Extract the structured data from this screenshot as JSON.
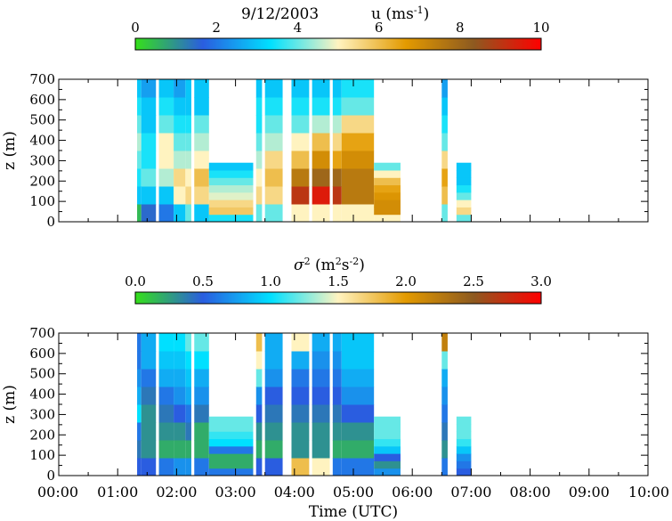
{
  "chart_data": [
    {
      "type": "heatmap",
      "title": "9/12/2003",
      "variable": "u",
      "unit_base": "ms",
      "unit_exp": "-1",
      "colorbar": {
        "min": 0,
        "max": 10,
        "ticks": [
          "0",
          "2",
          "4",
          "6",
          "8",
          "10"
        ],
        "tick_values": [
          0,
          2,
          4,
          6,
          8,
          10
        ],
        "colors": [
          "#35e01a",
          "#2a5de0",
          "#00e0ff",
          "#fff3c0",
          "#e39a00",
          "#8d5a20",
          "#ff0000"
        ]
      },
      "ylabel": "z (m)",
      "ylim": [
        0,
        700
      ],
      "yticks": [
        0,
        100,
        200,
        300,
        400,
        500,
        600,
        700
      ],
      "xlim": [
        0,
        10
      ],
      "segments": [
        {
          "x0": 1.33,
          "x1": 1.4,
          "ztop": 700,
          "profile": [
            0.5,
            3,
            3.5,
            4,
            4.5,
            4,
            3.5,
            3
          ]
        },
        {
          "x0": 1.4,
          "x1": 1.65,
          "ztop": 700,
          "profile": [
            1.5,
            3,
            4,
            3.5,
            3.5,
            3,
            3,
            2.5
          ]
        },
        {
          "x0": 1.7,
          "x1": 1.95,
          "ztop": 700,
          "profile": [
            2,
            3,
            4.5,
            5,
            5,
            4,
            3.5,
            3
          ]
        },
        {
          "x0": 1.95,
          "x1": 2.15,
          "ztop": 700,
          "profile": [
            3,
            5,
            5.5,
            4.5,
            4,
            3.5,
            3,
            2.5
          ]
        },
        {
          "x0": 2.15,
          "x1": 2.25,
          "ztop": 700,
          "profile": [
            4,
            5.5,
            5,
            4.5,
            4,
            3.5,
            3,
            3
          ]
        },
        {
          "x0": 2.3,
          "x1": 2.55,
          "ztop": 700,
          "profile": [
            3,
            5.5,
            6,
            5,
            4.5,
            4,
            3,
            3
          ]
        },
        {
          "x0": 2.55,
          "x1": 3.3,
          "ztop": 290,
          "profile": [
            3.5,
            5.8,
            5.5,
            4.8,
            4.5,
            4,
            3.5,
            3
          ]
        },
        {
          "x0": 3.35,
          "x1": 3.45,
          "ztop": 700,
          "profile": [
            4,
            5.5,
            5,
            4.5,
            4,
            3.5,
            3.5,
            3
          ]
        },
        {
          "x0": 3.5,
          "x1": 3.8,
          "ztop": 700,
          "profile": [
            4,
            5.5,
            6,
            5.5,
            4.5,
            4,
            3.5,
            3
          ]
        },
        {
          "x0": 3.95,
          "x1": 4.25,
          "ztop": 700,
          "profile": [
            5,
            9,
            7.5,
            6,
            5,
            4,
            3.5,
            3
          ]
        },
        {
          "x0": 4.3,
          "x1": 4.6,
          "ztop": 700,
          "profile": [
            5,
            9.5,
            8,
            7,
            6,
            4.5,
            3.5,
            3
          ]
        },
        {
          "x0": 4.65,
          "x1": 4.8,
          "ztop": 700,
          "profile": [
            5,
            9,
            8,
            6.5,
            5.5,
            4.5,
            3.5,
            3
          ]
        },
        {
          "x0": 4.8,
          "x1": 5.35,
          "ztop": 700,
          "profile": [
            5,
            7.5,
            7.5,
            7,
            6.5,
            5.5,
            4,
            3.5
          ]
        },
        {
          "x0": 5.35,
          "x1": 5.8,
          "ztop": 290,
          "profile": [
            5,
            7,
            7,
            6.8,
            6.5,
            6,
            5,
            4
          ]
        },
        {
          "x0": 6.5,
          "x1": 6.6,
          "ztop": 700,
          "profile": [
            4,
            6,
            6.5,
            5.5,
            4,
            3.5,
            3,
            2.5
          ]
        },
        {
          "x0": 6.75,
          "x1": 7.0,
          "ztop": 290,
          "profile": [
            4,
            5.5,
            5,
            4,
            3.5,
            3,
            3,
            3
          ]
        }
      ]
    },
    {
      "type": "heatmap",
      "variable": "σ",
      "variable_exp": "2",
      "unit_base": "m",
      "unit_exp1": "2",
      "unit_mid": "s",
      "unit_exp2": "-2",
      "colorbar": {
        "min": 0,
        "max": 3,
        "ticks": [
          "0.0",
          "0.5",
          "1.0",
          "1.5",
          "2.0",
          "2.5",
          "3.0"
        ],
        "tick_values": [
          0,
          0.5,
          1,
          1.5,
          2,
          2.5,
          3
        ],
        "colors": [
          "#35e01a",
          "#2a5de0",
          "#00e0ff",
          "#fff3c0",
          "#e39a00",
          "#8d5a20",
          "#ff0000"
        ]
      },
      "xlabel": "Time (UTC)",
      "xticks": [
        "00:00",
        "01:00",
        "02:00",
        "03:00",
        "04:00",
        "05:00",
        "06:00",
        "07:00",
        "08:00",
        "09:00",
        "10:00"
      ],
      "xlim": [
        0,
        10
      ],
      "ylabel": "z (m)",
      "ylim": [
        0,
        700
      ],
      "yticks": [
        0,
        100,
        200,
        300,
        400,
        500,
        600,
        700
      ],
      "segments": [
        {
          "x0": 1.33,
          "x1": 1.4,
          "ztop": 700,
          "profile": [
            0.5,
            0.4,
            0.6,
            1.0,
            0.8,
            0.7,
            0.6,
            0.6
          ]
        },
        {
          "x0": 1.4,
          "x1": 1.65,
          "ztop": 700,
          "profile": [
            0.5,
            0.3,
            0.3,
            0.3,
            0.4,
            0.6,
            0.8,
            0.8
          ]
        },
        {
          "x0": 1.7,
          "x1": 1.95,
          "ztop": 700,
          "profile": [
            0.6,
            0.2,
            0.3,
            0.4,
            0.6,
            0.8,
            0.9,
            1.0
          ]
        },
        {
          "x0": 1.95,
          "x1": 2.15,
          "ztop": 700,
          "profile": [
            0.7,
            0.2,
            0.3,
            0.5,
            0.7,
            0.8,
            0.9,
            1.0
          ]
        },
        {
          "x0": 2.15,
          "x1": 2.25,
          "ztop": 700,
          "profile": [
            0.7,
            0.2,
            0.4,
            0.6,
            0.8,
            0.9,
            1.0,
            1.2
          ]
        },
        {
          "x0": 2.3,
          "x1": 2.55,
          "ztop": 700,
          "profile": [
            0.6,
            0.2,
            0.2,
            0.4,
            0.7,
            0.8,
            1.0,
            1.2
          ]
        },
        {
          "x0": 2.55,
          "x1": 3.3,
          "ztop": 290,
          "profile": [
            0.6,
            0.2,
            0.2,
            0.6,
            1.0,
            1.1,
            1.2,
            1.2
          ]
        },
        {
          "x0": 3.35,
          "x1": 3.45,
          "ztop": 700,
          "profile": [
            0.5,
            0.2,
            0.3,
            0.5,
            0.7,
            1.2,
            1.5,
            1.8
          ]
        },
        {
          "x0": 3.5,
          "x1": 3.8,
          "ztop": 700,
          "profile": [
            0.5,
            0.2,
            0.3,
            0.4,
            0.5,
            0.7,
            0.8,
            0.8
          ]
        },
        {
          "x0": 3.95,
          "x1": 4.25,
          "ztop": 700,
          "profile": [
            1.8,
            0.3,
            0.3,
            0.4,
            0.5,
            0.6,
            0.8,
            1.5
          ]
        },
        {
          "x0": 4.3,
          "x1": 4.6,
          "ztop": 700,
          "profile": [
            1.5,
            0.3,
            0.3,
            0.4,
            0.5,
            0.6,
            0.7,
            0.8
          ]
        },
        {
          "x0": 4.65,
          "x1": 4.8,
          "ztop": 700,
          "profile": [
            0.6,
            0.2,
            0.3,
            0.4,
            0.5,
            0.6,
            0.7,
            0.8
          ]
        },
        {
          "x0": 4.8,
          "x1": 5.35,
          "ztop": 700,
          "profile": [
            0.6,
            0.2,
            0.3,
            0.5,
            0.7,
            0.8,
            0.9,
            0.9
          ]
        },
        {
          "x0": 5.35,
          "x1": 5.8,
          "ztop": 290,
          "profile": [
            0.7,
            0.3,
            0.5,
            0.9,
            1.1,
            1.2,
            1.2,
            1.2
          ]
        },
        {
          "x0": 6.5,
          "x1": 6.6,
          "ztop": 700,
          "profile": [
            0.6,
            0.3,
            0.4,
            0.6,
            0.7,
            0.8,
            1.2,
            2.2
          ]
        },
        {
          "x0": 6.75,
          "x1": 7.0,
          "ztop": 290,
          "profile": [
            0.5,
            0.6,
            0.7,
            0.9,
            1.1,
            1.2,
            1.2,
            1.2
          ]
        }
      ]
    }
  ]
}
